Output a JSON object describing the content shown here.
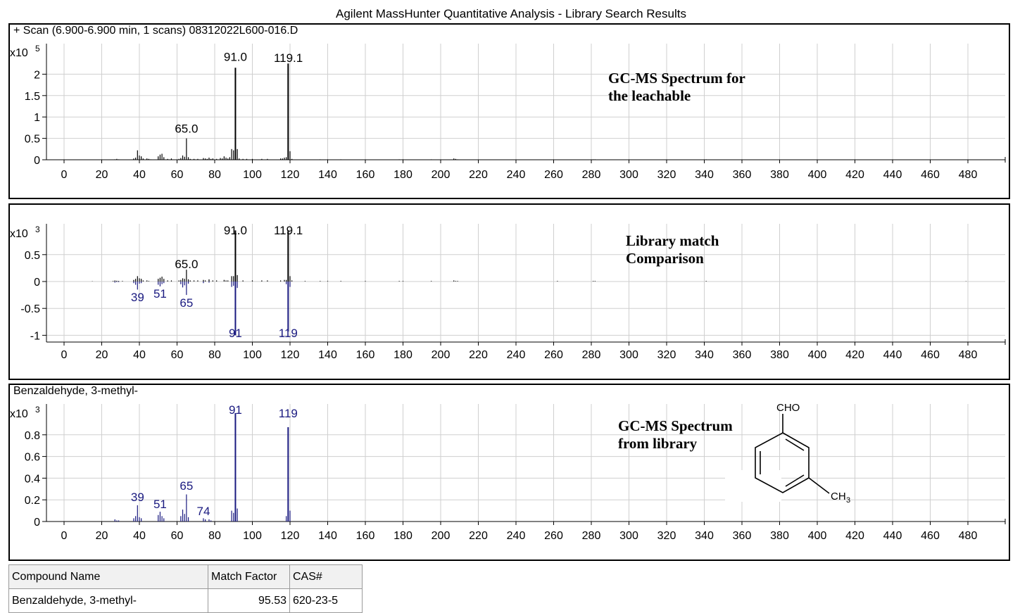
{
  "window_title": "Agilent MassHunter Quantitative Analysis - Library Search Results",
  "panels": [
    {
      "header": "+ Scan (6.900-6.900 min, 1 scans) 08312022L600-016.D",
      "annotation": "GC-MS Spectrum for\nthe leachable",
      "y_multiplier": "x10",
      "y_exponent": "5",
      "y_ticks": [
        "2",
        "1.5",
        "1",
        "0.5",
        "0"
      ],
      "peak_labels": [
        "91.0",
        "119.1",
        "65.0"
      ]
    },
    {
      "header": "",
      "annotation": "Library match\nComparison",
      "y_multiplier": "x10",
      "y_exponent": "3",
      "y_ticks": [
        "0.5",
        "0",
        "-0.5",
        "-1"
      ],
      "peak_labels": [
        "91.0",
        "119.1",
        "65.0"
      ],
      "library_labels": [
        "39",
        "51",
        "65",
        "91",
        "119"
      ]
    },
    {
      "header": "Benzaldehyde, 3-methyl-",
      "annotation": "GC-MS Spectrum\nfrom library",
      "y_multiplier": "x10",
      "y_exponent": "3",
      "y_ticks": [
        "0.8",
        "0.6",
        "0.4",
        "0.2",
        "0"
      ],
      "peak_labels": [
        "91",
        "119",
        "39",
        "51",
        "65",
        "74"
      ]
    }
  ],
  "x_ticks": [
    "0",
    "20",
    "40",
    "60",
    "80",
    "100",
    "120",
    "140",
    "160",
    "180",
    "200",
    "220",
    "240",
    "260",
    "280",
    "300",
    "320",
    "340",
    "360",
    "380",
    "400",
    "420",
    "440",
    "460",
    "480"
  ],
  "structure": {
    "cho_label": "CHO",
    "ch3_label": "CH",
    "ch3_sub": "3"
  },
  "results_table": {
    "headers": [
      "Compound Name",
      "Match Factor",
      "CAS#"
    ],
    "rows": [
      [
        "Benzaldehyde, 3-methyl-",
        "95.53",
        "620-23-5"
      ]
    ]
  },
  "colors": {
    "sample": "#000000",
    "library": "#1a1a80",
    "grid": "#cfcfcf"
  },
  "chart_data": [
    {
      "type": "bar",
      "xlim": [
        0,
        490
      ],
      "ylim": [
        0,
        2.5
      ],
      "y_unit": "x10^5",
      "peak_labels": [
        {
          "mz": 91.0,
          "text": "91.0"
        },
        {
          "mz": 119.1,
          "text": "119.1"
        },
        {
          "mz": 65.0,
          "text": "65.0"
        }
      ],
      "x": [
        27,
        28,
        29,
        37,
        38,
        39,
        40,
        41,
        42,
        44,
        45,
        46,
        50,
        51,
        52,
        53,
        55,
        57,
        61,
        62,
        63,
        64,
        65,
        66,
        67,
        69,
        71,
        74,
        75,
        76,
        77,
        78,
        79,
        81,
        83,
        84,
        85,
        86,
        87,
        88,
        89,
        90,
        91,
        92,
        93,
        95,
        97,
        100,
        105,
        108,
        115,
        116,
        117,
        118,
        119,
        120,
        121,
        136,
        140,
        147,
        178,
        180,
        195,
        207,
        208,
        209,
        281,
        282,
        341
      ],
      "y": [
        0.01,
        0.02,
        0.01,
        0.03,
        0.05,
        0.22,
        0.1,
        0.08,
        0.03,
        0.03,
        0.02,
        0.01,
        0.08,
        0.12,
        0.14,
        0.06,
        0.02,
        0.03,
        0.02,
        0.04,
        0.1,
        0.07,
        0.5,
        0.06,
        0.02,
        0.02,
        0.02,
        0.04,
        0.03,
        0.02,
        0.05,
        0.02,
        0.03,
        0.02,
        0.04,
        0.03,
        0.08,
        0.05,
        0.03,
        0.06,
        0.25,
        0.22,
        2.15,
        0.25,
        0.03,
        0.02,
        0.02,
        0.02,
        0.02,
        0.02,
        0.03,
        0.03,
        0.05,
        0.06,
        2.25,
        0.2,
        0.02,
        0.01,
        0.01,
        0.01,
        0.01,
        0.01,
        0.01,
        0.03,
        0.02,
        0.01,
        0.01,
        0.01,
        0.01
      ]
    },
    {
      "type": "bar",
      "xlim": [
        0,
        490
      ],
      "ylim": [
        -1.1,
        0.95
      ],
      "y_unit": "x10^3",
      "peak_labels": [
        {
          "mz": 91.0,
          "text": "91.0"
        },
        {
          "mz": 119.1,
          "text": "119.1"
        },
        {
          "mz": 65.0,
          "text": "65.0"
        }
      ],
      "library_labels": [
        {
          "mz": 39,
          "text": "39"
        },
        {
          "mz": 51,
          "text": "51"
        },
        {
          "mz": 65,
          "text": "65"
        },
        {
          "mz": 91,
          "text": "91"
        },
        {
          "mz": 119,
          "text": "119"
        }
      ],
      "series": [
        {
          "name": "sample",
          "x": [
            15,
            26,
            27,
            28,
            29,
            31,
            37,
            38,
            39,
            40,
            41,
            42,
            44,
            45,
            50,
            51,
            52,
            53,
            55,
            57,
            61,
            62,
            63,
            64,
            65,
            66,
            67,
            69,
            71,
            74,
            75,
            77,
            79,
            81,
            85,
            86,
            87,
            89,
            90,
            91,
            92,
            95,
            100,
            105,
            108,
            115,
            117,
            118,
            119,
            120,
            121,
            128,
            136,
            140,
            147,
            160,
            178,
            180,
            195,
            207,
            208,
            209,
            262,
            281,
            282,
            341,
            479
          ],
          "y": [
            0.005,
            0.01,
            0.02,
            0.015,
            0.01,
            0.01,
            0.03,
            0.05,
            0.1,
            0.06,
            0.05,
            0.02,
            0.02,
            0.01,
            0.05,
            0.07,
            0.09,
            0.05,
            0.02,
            0.02,
            0.02,
            0.03,
            0.06,
            0.05,
            0.22,
            0.04,
            0.02,
            0.02,
            0.02,
            0.03,
            0.02,
            0.04,
            0.02,
            0.02,
            0.03,
            0.02,
            0.02,
            0.1,
            0.1,
            0.95,
            0.12,
            0.02,
            0.02,
            0.02,
            0.02,
            0.02,
            0.03,
            0.03,
            0.95,
            0.1,
            0.02,
            0.01,
            0.01,
            0.01,
            0.01,
            0.01,
            0.01,
            0.01,
            0.01,
            0.02,
            0.01,
            0.01,
            0.01,
            0.01,
            0.01,
            0.01,
            0.005
          ]
        },
        {
          "name": "library",
          "x": [
            27,
            28,
            29,
            37,
            38,
            39,
            40,
            41,
            50,
            51,
            52,
            53,
            62,
            63,
            64,
            65,
            66,
            74,
            77,
            89,
            90,
            91,
            92,
            118,
            119,
            120
          ],
          "y": [
            -0.02,
            -0.01,
            -0.01,
            -0.03,
            -0.06,
            -0.15,
            -0.04,
            -0.03,
            -0.06,
            -0.09,
            -0.05,
            -0.03,
            -0.05,
            -0.11,
            -0.07,
            -0.25,
            -0.04,
            -0.03,
            -0.02,
            -0.1,
            -0.08,
            -1.0,
            -0.12,
            -0.05,
            -0.93,
            -0.1
          ]
        }
      ]
    },
    {
      "type": "bar",
      "xlim": [
        0,
        490
      ],
      "ylim": [
        0,
        1.05
      ],
      "y_unit": "x10^3",
      "peak_labels": [
        {
          "mz": 91,
          "text": "91"
        },
        {
          "mz": 119,
          "text": "119"
        },
        {
          "mz": 39,
          "text": "39"
        },
        {
          "mz": 51,
          "text": "51"
        },
        {
          "mz": 65,
          "text": "65"
        },
        {
          "mz": 74,
          "text": "74"
        }
      ],
      "x": [
        27,
        28,
        29,
        37,
        38,
        39,
        40,
        41,
        50,
        51,
        52,
        53,
        62,
        63,
        64,
        65,
        66,
        74,
        75,
        77,
        78,
        89,
        90,
        91,
        92,
        118,
        119,
        120
      ],
      "y": [
        0.02,
        0.01,
        0.01,
        0.03,
        0.05,
        0.15,
        0.04,
        0.03,
        0.06,
        0.09,
        0.05,
        0.03,
        0.05,
        0.11,
        0.07,
        0.25,
        0.04,
        0.03,
        0.02,
        0.02,
        0.01,
        0.1,
        0.08,
        1.0,
        0.12,
        0.05,
        0.87,
        0.1
      ]
    }
  ]
}
